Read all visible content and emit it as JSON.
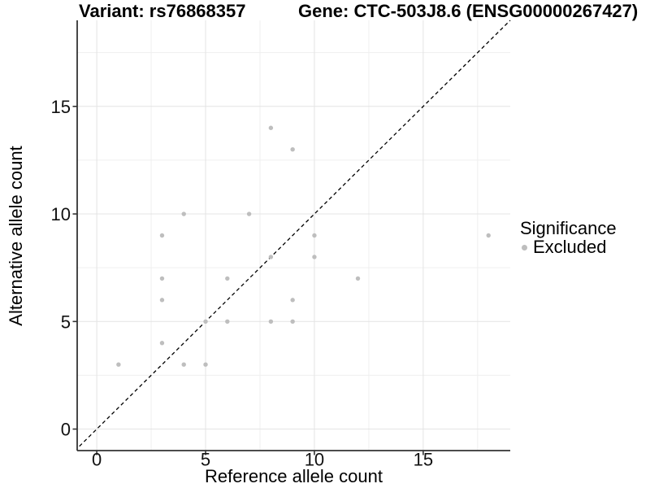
{
  "page": {
    "background": "#ffffff"
  },
  "chart_data": {
    "type": "scatter",
    "title_left": "Variant: rs76868357",
    "title_right": "Gene: CTC-503J8.6 (ENSG00000267427)",
    "xlabel": "Reference allele count",
    "ylabel": "Alternative allele count",
    "xlim": [
      -0.9,
      19.0
    ],
    "ylim": [
      -1.0,
      19.0
    ],
    "x_ticks": [
      0,
      5,
      10,
      15
    ],
    "y_ticks": [
      0,
      5,
      10,
      15
    ],
    "x_minor_gridlines": [
      2.5,
      7.5,
      12.5,
      17.5
    ],
    "y_minor_gridlines": [
      2.5,
      7.5,
      12.5,
      17.5
    ],
    "grid": true,
    "identity_line": {
      "style": "dashed",
      "color": "#000000",
      "slope": 1,
      "intercept": 0
    },
    "legend": {
      "title": "Significance",
      "position": "right",
      "items": [
        {
          "label": "Excluded",
          "color": "#bebebe"
        }
      ]
    },
    "series": [
      {
        "name": "Excluded",
        "color": "#bebebe",
        "points": [
          [
            1,
            3
          ],
          [
            3,
            4
          ],
          [
            3,
            6
          ],
          [
            3,
            7
          ],
          [
            3,
            9
          ],
          [
            4,
            3
          ],
          [
            4,
            10
          ],
          [
            5,
            3
          ],
          [
            5,
            5
          ],
          [
            6,
            5
          ],
          [
            6,
            7
          ],
          [
            7,
            10
          ],
          [
            8,
            5
          ],
          [
            8,
            8
          ],
          [
            8,
            14
          ],
          [
            9,
            5
          ],
          [
            9,
            6
          ],
          [
            9,
            13
          ],
          [
            10,
            8
          ],
          [
            10,
            9
          ],
          [
            12,
            7
          ],
          [
            18,
            9
          ]
        ]
      }
    ],
    "colors": {
      "point": "#bebebe",
      "axis_line": "#333333",
      "tick_label": "#111111",
      "grid_major": "#e4e4e4",
      "grid_minor": "#efefef"
    }
  }
}
